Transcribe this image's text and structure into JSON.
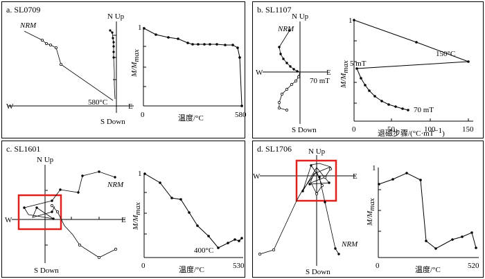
{
  "panels": {
    "a": {
      "label": "a. SL0709",
      "zij": {
        "n_up": "N Up",
        "s_down": "S Down",
        "w": "W",
        "e": "E",
        "nrm": "NRM",
        "temp": "580°C"
      },
      "decay": {
        "ylabel": "M/M",
        "ylabel_sub": "max",
        "xlabel": "温度/°C",
        "x0": "0",
        "x1": "580",
        "y1": "1"
      }
    },
    "b": {
      "label": "b. SL1107",
      "zij": {
        "n_up": "N Up",
        "s_down": "S Down",
        "w": "W",
        "e": "E",
        "nrm": "NRM",
        "step": "70 mT"
      },
      "decay": {
        "ylabel": "M/M",
        "ylabel_sub": "max",
        "xlabel": "退磁步骤/(°C·mT",
        "xlabel_sup": "−1",
        "xlabel_end": ")",
        "x0": "0",
        "x1": "50",
        "x2": "100",
        "x3": "150",
        "y1": "1",
        "ann_150": "150°C",
        "ann_5": "5 mT",
        "ann_70": "70 mT"
      }
    },
    "c": {
      "label": "c. SL1601",
      "zij": {
        "n_up": "N Up",
        "s_down": "S Down",
        "w": "W",
        "e": "E",
        "nrm": "NRM"
      },
      "decay": {
        "ylabel": "M/M",
        "ylabel_sub": "max",
        "xlabel": "温度/°C",
        "x0": "0",
        "x1": "530",
        "y1": "1",
        "ann": "400°C"
      }
    },
    "d": {
      "label": "d. SL1706",
      "zij": {
        "n_up": "N Up",
        "s_down": "S Down",
        "w": "W",
        "e": "E",
        "nrm": "NRM"
      },
      "decay": {
        "ylabel": "M/M",
        "ylabel_sub": "max",
        "xlabel": "温度/°C",
        "x0": "0",
        "x1": "520",
        "y1": "1"
      }
    }
  }
}
